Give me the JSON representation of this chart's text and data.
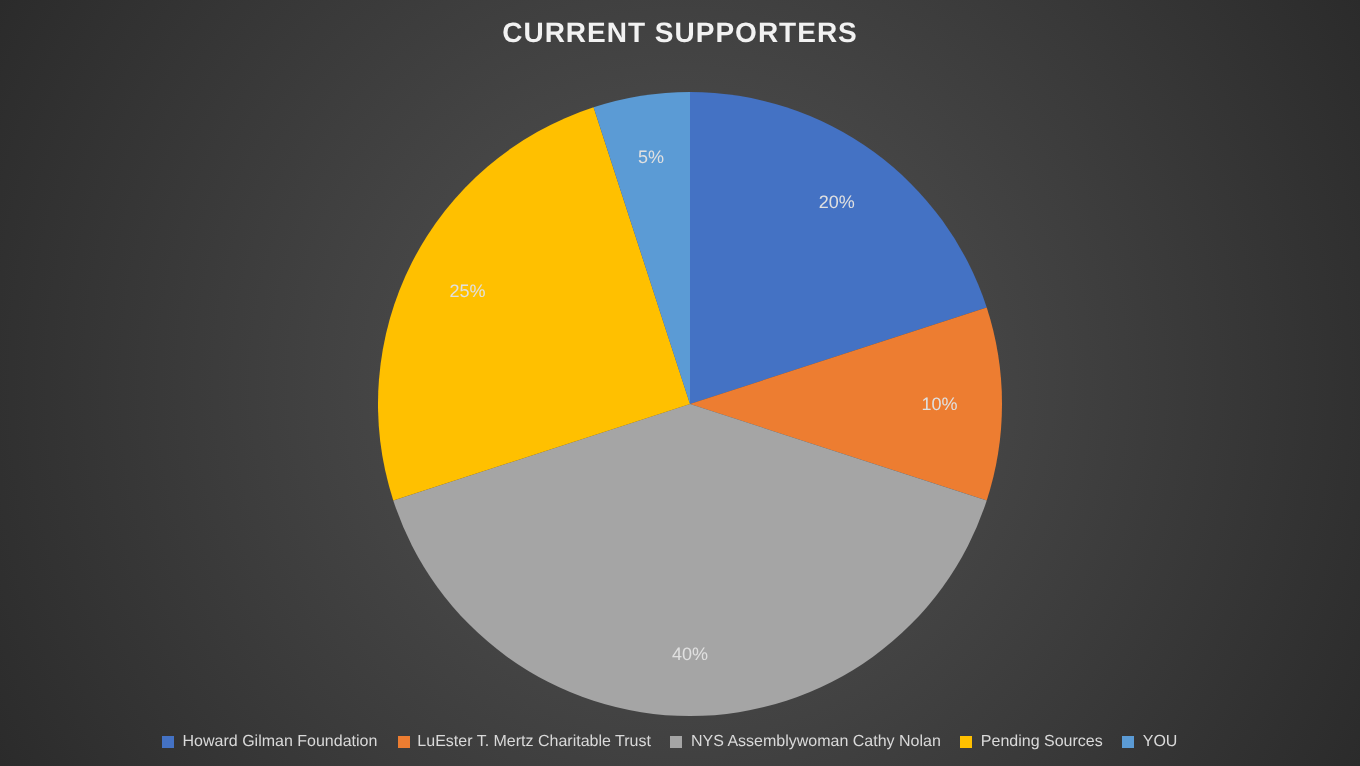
{
  "chart_data": {
    "type": "pie",
    "title": "CURRENT SUPPORTERS",
    "categories": [
      "Howard Gilman Foundation",
      "LuEster T. Mertz Charitable Trust",
      "NYS Assemblywoman Cathy Nolan",
      "Pending Sources",
      "YOU"
    ],
    "values": [
      20,
      10,
      40,
      25,
      5
    ],
    "colors": [
      "#4472c4",
      "#ed7d31",
      "#a5a5a5",
      "#ffc000",
      "#5b9bd5"
    ],
    "value_labels": [
      "20%",
      "10%",
      "40%",
      "25%",
      "5%"
    ],
    "legend": "bottom"
  }
}
